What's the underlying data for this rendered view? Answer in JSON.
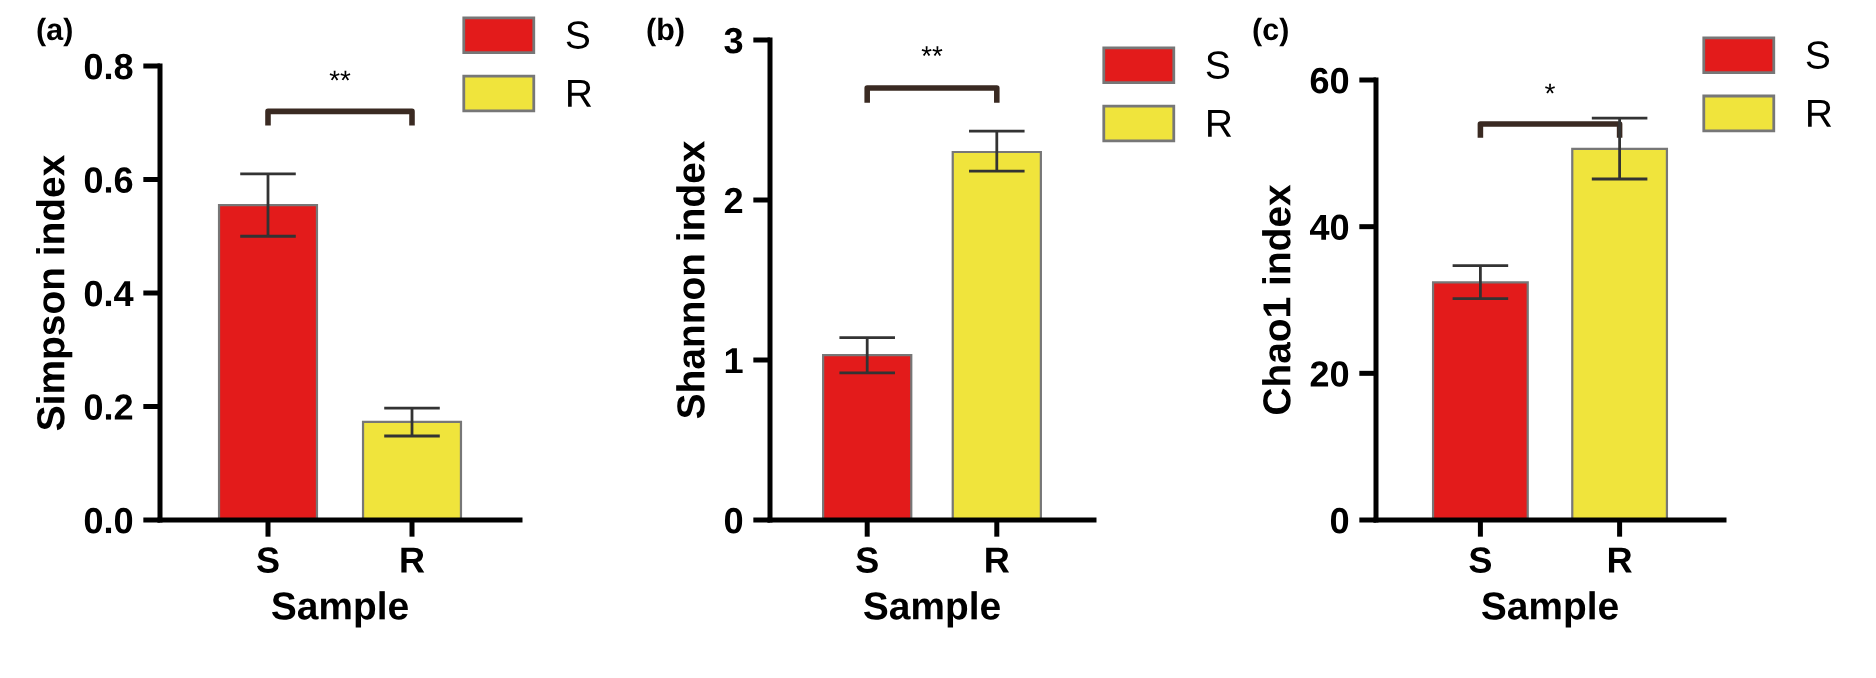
{
  "chart_data": [
    {
      "type": "bar",
      "title": "(a)",
      "xlabel": "Sample",
      "ylabel": "Simpson index",
      "categories": [
        "S",
        "R"
      ],
      "series": [
        {
          "name": "S",
          "color": "#e31b1b",
          "values": [
            0.555,
            null
          ],
          "errors": [
            [
              0.5,
              0.61
            ],
            null
          ]
        },
        {
          "name": "R",
          "color": "#f0e43c",
          "values": [
            null,
            0.173
          ],
          "errors": [
            null,
            [
              0.148,
              0.197
            ]
          ]
        }
      ],
      "ylim": [
        0,
        0.8
      ],
      "yticks": [
        {
          "value": 0,
          "label": "0.0"
        },
        0.2,
        0.4,
        0.6,
        0.8
      ],
      "legend": "top right",
      "annotations": [
        "**"
      ]
    },
    {
      "type": "bar",
      "title": "(b)",
      "xlabel": "Sample",
      "ylabel": "Shannon index",
      "categories": [
        "S",
        "R"
      ],
      "series": [
        {
          "name": "S",
          "color": "#e31b1b",
          "values": [
            1.03,
            null
          ],
          "errors": [
            [
              0.92,
              1.14
            ],
            null
          ]
        },
        {
          "name": "R",
          "color": "#f0e43c",
          "values": [
            null,
            2.3
          ],
          "errors": [
            null,
            [
              2.18,
              2.43
            ]
          ]
        }
      ],
      "ylim": [
        0,
        3
      ],
      "yticks": [
        0,
        1,
        2,
        3
      ],
      "legend": "top right",
      "annotations": [
        "**"
      ]
    },
    {
      "type": "bar",
      "title": "(c)",
      "xlabel": "Sample",
      "ylabel": "Chao1 index",
      "categories": [
        "S",
        "R"
      ],
      "series": [
        {
          "name": "S",
          "color": "#e31b1b",
          "values": [
            32.4,
            null
          ],
          "errors": [
            [
              30.2,
              34.7
            ],
            null
          ]
        },
        {
          "name": "R",
          "color": "#f0e43c",
          "values": [
            null,
            50.6
          ],
          "errors": [
            null,
            [
              46.5,
              54.8
            ]
          ]
        }
      ],
      "ylim": [
        0,
        60
      ],
      "yticks": [
        0,
        20,
        40,
        60
      ],
      "legend": "top right",
      "annotations": [
        "*"
      ]
    }
  ]
}
